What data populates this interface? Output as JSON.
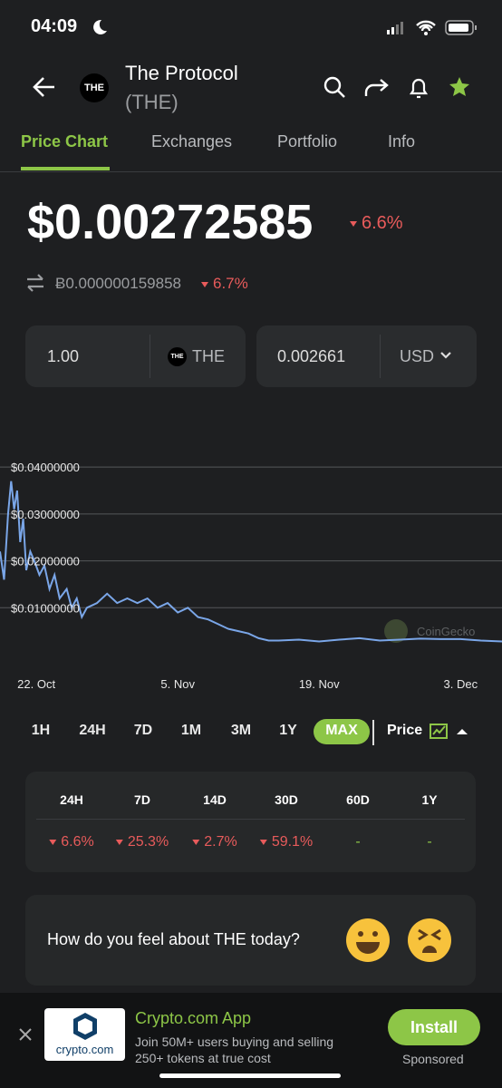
{
  "status_bar": {
    "time": "04:09"
  },
  "header": {
    "logo": "THE",
    "title": "The Protocol",
    "symbol": "(THE)"
  },
  "tabs": [
    "Price Chart",
    "Exchanges",
    "Portfolio",
    "Info"
  ],
  "price": {
    "usd": "$0.00272585",
    "usd_change": "6.6%",
    "btc": "Ƀ0.000000159858",
    "btc_change": "6.7%"
  },
  "converter": {
    "amount": "1.00",
    "coin": "THE",
    "coin_logo": "THE",
    "result": "0.002661",
    "currency": "USD"
  },
  "chart": {
    "type": "line",
    "color": "#7aa6e8",
    "watermark": "CoinGecko",
    "x": [
      -3.6,
      -3.2,
      -2.8,
      -2.5,
      -2.2,
      -1.9,
      -1.6,
      -1.3,
      -1.0,
      -0.6,
      -0.2,
      0.3,
      0.8,
      1.3,
      1.8,
      2.3,
      3,
      3.5,
      4,
      4.5,
      5,
      6,
      7,
      8,
      9,
      10,
      11,
      12,
      13,
      14,
      15,
      16,
      17,
      18,
      19,
      20,
      21,
      22,
      23,
      24,
      26,
      28,
      30,
      32,
      34,
      36,
      38,
      40,
      42,
      44,
      46.1
    ],
    "values": [
      0.022,
      0.016,
      0.03,
      0.037,
      0.031,
      0.035,
      0.024,
      0.029,
      0.018,
      0.022,
      0.02,
      0.017,
      0.019,
      0.014,
      0.017,
      0.012,
      0.014,
      0.01,
      0.012,
      0.008,
      0.01,
      0.011,
      0.013,
      0.011,
      0.012,
      0.011,
      0.012,
      0.01,
      0.011,
      0.009,
      0.01,
      0.008,
      0.0075,
      0.0065,
      0.0055,
      0.005,
      0.0045,
      0.0035,
      0.003,
      0.003,
      0.0032,
      0.0028,
      0.0032,
      0.0035,
      0.003,
      0.0032,
      0.0034,
      0.0033,
      0.0033,
      0.003,
      0.0028
    ],
    "xlim": [
      -3.6,
      46.1
    ],
    "xticks": [
      {
        "value": 0,
        "label": "22. Oct"
      },
      {
        "value": 14,
        "label": "5. Nov"
      },
      {
        "value": 28,
        "label": "19. Nov"
      },
      {
        "value": 42,
        "label": "3. Dec"
      }
    ],
    "ylim": [
      0,
      0.044
    ],
    "yticks": [
      {
        "value": 0.01,
        "label": "$0.01000000"
      },
      {
        "value": 0.02,
        "label": "$0.02000000"
      },
      {
        "value": 0.03,
        "label": "$0.03000000"
      },
      {
        "value": 0.04,
        "label": "$0.04000000"
      }
    ],
    "grid": true
  },
  "ranges": [
    "1H",
    "24H",
    "7D",
    "1M",
    "3M",
    "1Y",
    "MAX"
  ],
  "active_range": "MAX",
  "metric": "Price",
  "changes": {
    "headers": [
      "24H",
      "7D",
      "14D",
      "30D",
      "60D",
      "1Y"
    ],
    "values": [
      "6.6%",
      "25.3%",
      "2.7%",
      "59.1%",
      "-",
      "-"
    ]
  },
  "sentiment": {
    "question": "How do you feel about THE today?"
  },
  "ad": {
    "logo_text": "crypto.com",
    "title": "Crypto.com App",
    "text": "Join 50M+ users buying and selling 250+ tokens at true cost",
    "button": "Install",
    "label": "Sponsored"
  }
}
